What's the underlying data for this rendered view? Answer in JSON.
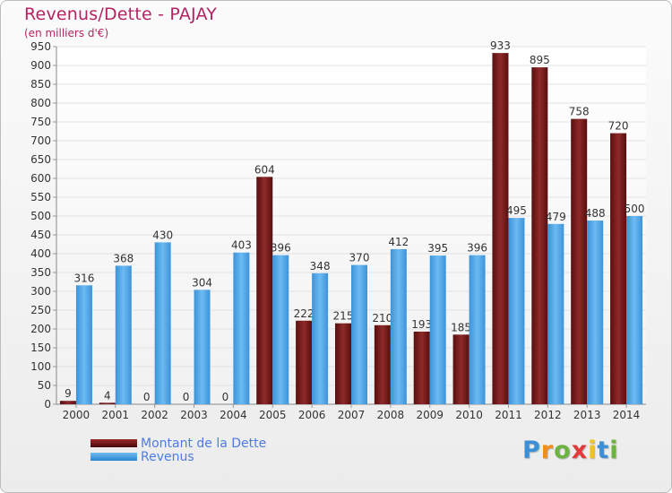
{
  "chart_data": {
    "type": "bar",
    "title": "Revenus/Dette - PAJAY",
    "subtitle": "(en milliers d'€)",
    "categories": [
      "2000",
      "2001",
      "2002",
      "2003",
      "2004",
      "2005",
      "2006",
      "2007",
      "2008",
      "2009",
      "2010",
      "2011",
      "2012",
      "2013",
      "2014"
    ],
    "series": [
      {
        "name": "Montant de la Dette",
        "color": "#7a1a1a",
        "values": [
          9,
          4,
          0,
          0,
          0,
          604,
          222,
          215,
          210,
          193,
          185,
          933,
          895,
          758,
          720
        ]
      },
      {
        "name": "Revenus",
        "color": "#4da3e6",
        "values": [
          316,
          368,
          430,
          304,
          403,
          396,
          348,
          370,
          412,
          395,
          396,
          495,
          479,
          488,
          500
        ]
      }
    ],
    "ylim": [
      0,
      950
    ],
    "yticks": [
      0,
      50,
      100,
      150,
      200,
      250,
      300,
      350,
      400,
      450,
      500,
      550,
      600,
      650,
      700,
      750,
      800,
      850,
      900,
      950
    ],
    "grid": true,
    "legend": "bottom-left"
  },
  "logo": {
    "letters": [
      "P",
      "r",
      "o",
      "x",
      "i",
      "t",
      "i"
    ],
    "colors": [
      "#3a8fd6",
      "#f28c1f",
      "#6cb33f",
      "#e03a3a",
      "#f2c21f",
      "#3a8fd6",
      "#6cb33f"
    ]
  }
}
